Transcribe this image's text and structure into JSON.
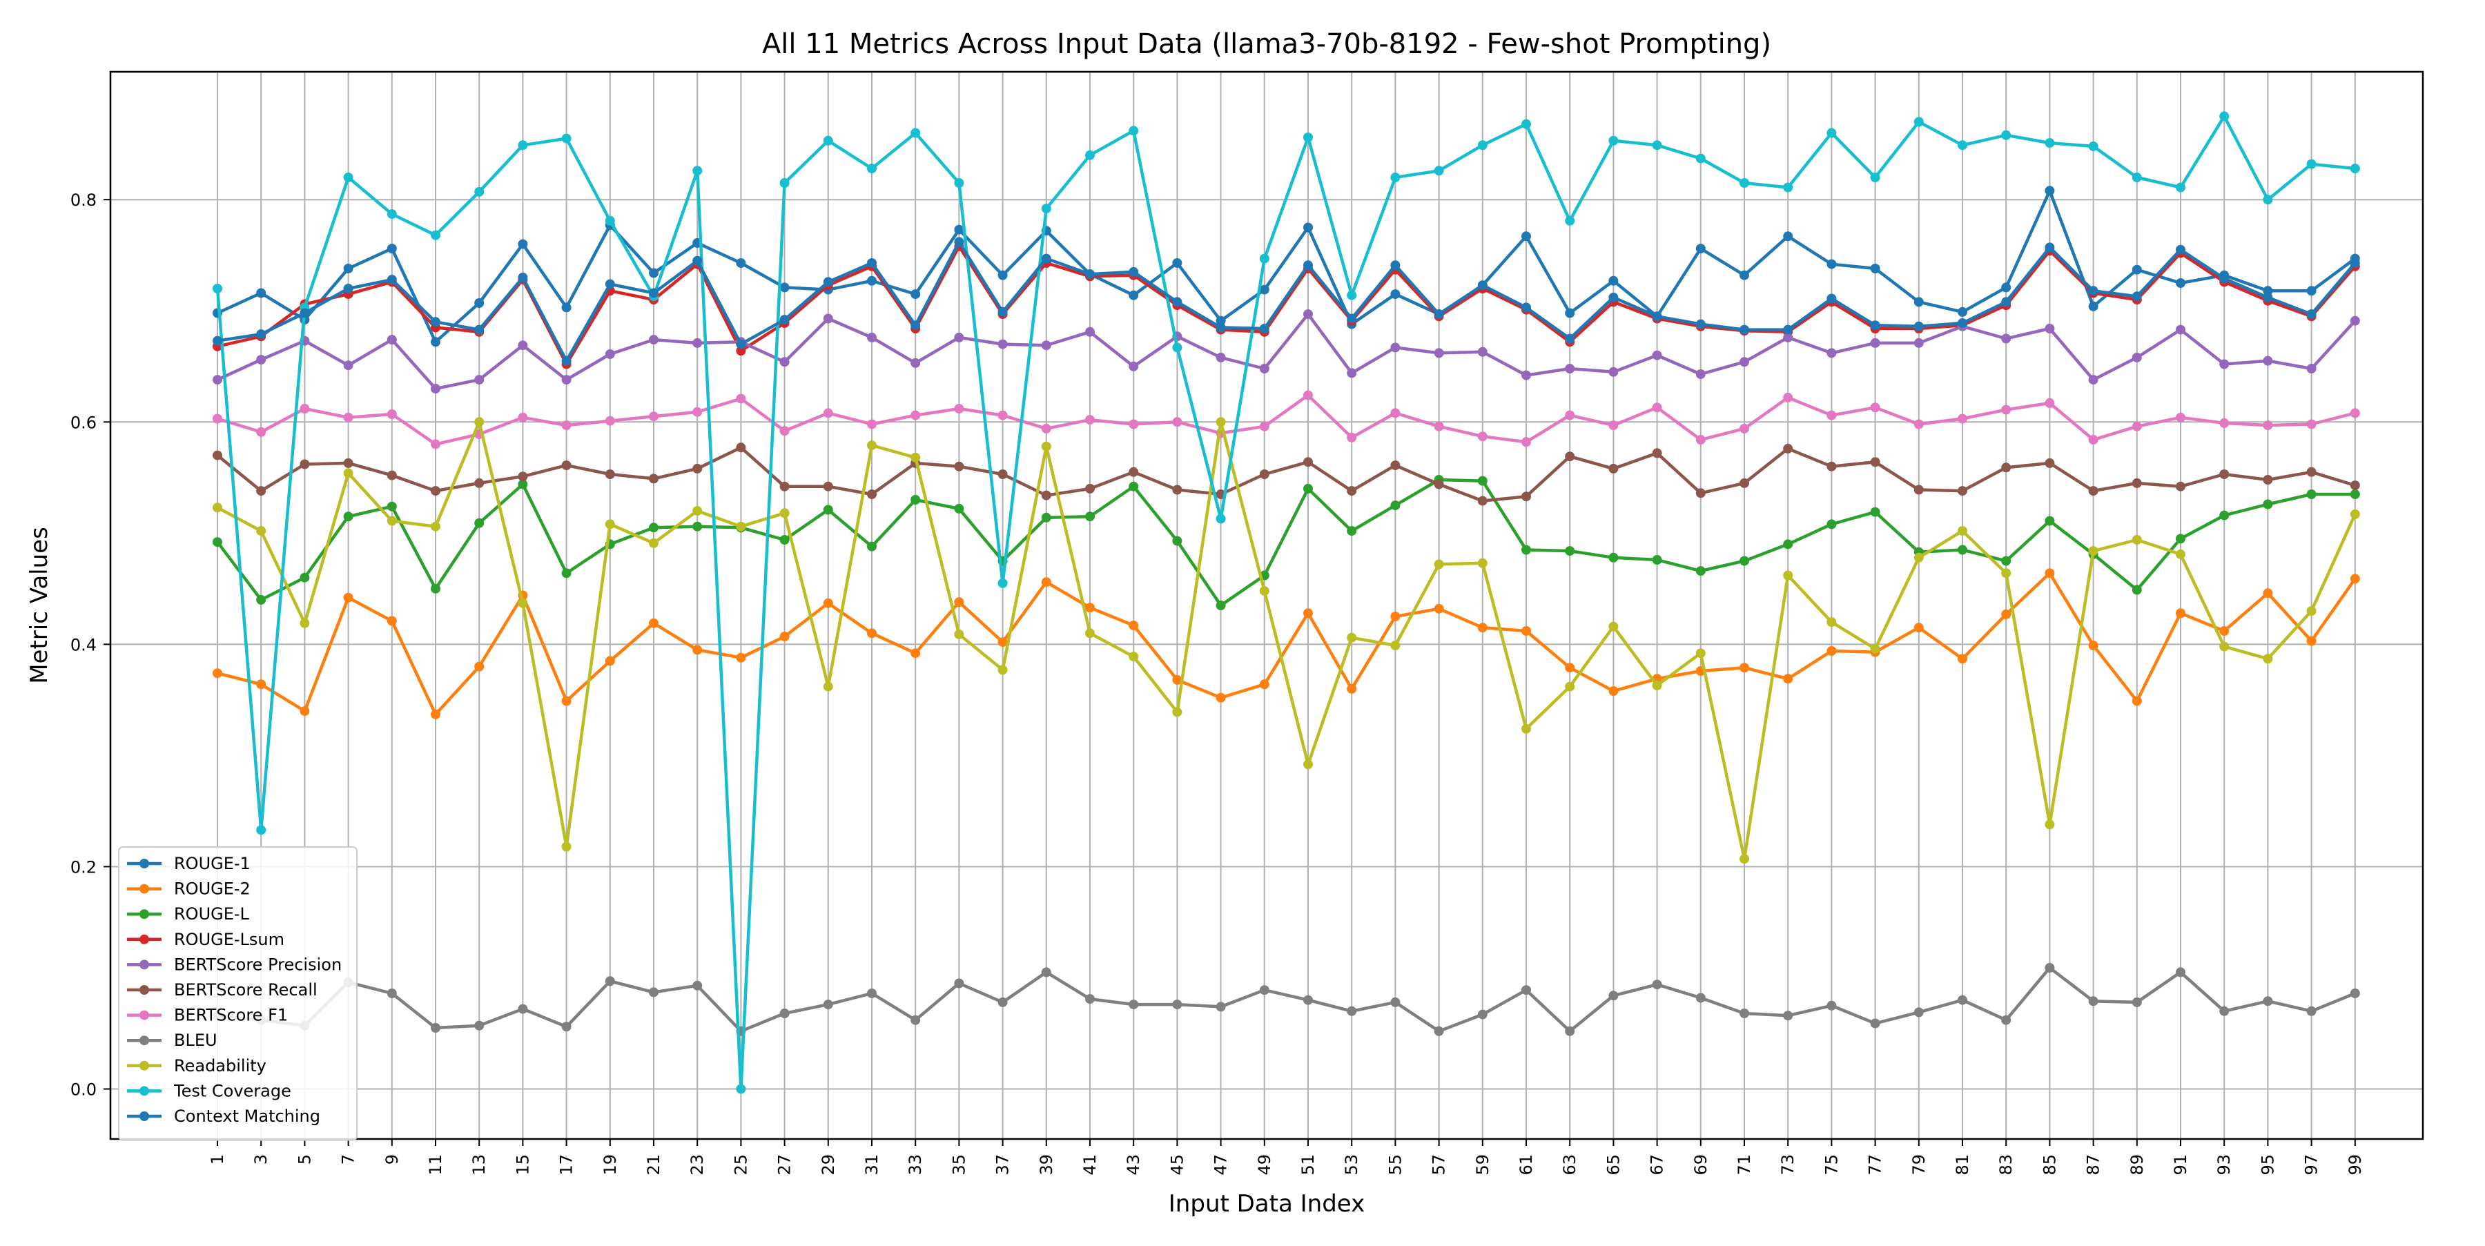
{
  "chart_data": {
    "type": "line",
    "title": "All 11 Metrics Across Input Data (llama3-70b-8192 - Few-shot Prompting)",
    "xlabel": "Input Data Index",
    "ylabel": "Metric Values",
    "ylim": [
      -0.045,
      0.915
    ],
    "yticks": [
      "0.0",
      "0.2",
      "0.4",
      "0.6",
      "0.8"
    ],
    "x": [
      1,
      3,
      5,
      7,
      9,
      11,
      13,
      15,
      17,
      19,
      21,
      23,
      25,
      27,
      29,
      31,
      33,
      35,
      37,
      39,
      41,
      43,
      45,
      47,
      49,
      51,
      53,
      55,
      57,
      59,
      61,
      63,
      65,
      67,
      69,
      71,
      73,
      75,
      77,
      79,
      81,
      83,
      85,
      87,
      89,
      91,
      93,
      95,
      97,
      99
    ],
    "grid": true,
    "legend_position": "lower-left",
    "series": [
      {
        "name": "ROUGE-1",
        "color": "#1f77b4",
        "values": [
          0.698,
          0.716,
          0.692,
          0.738,
          0.756,
          0.672,
          0.707,
          0.76,
          0.703,
          0.777,
          0.734,
          0.761,
          0.743,
          0.721,
          0.719,
          0.727,
          0.715,
          0.773,
          0.732,
          0.772,
          0.733,
          0.714,
          0.743,
          0.691,
          0.719,
          0.775,
          0.688,
          0.715,
          0.697,
          0.723,
          0.767,
          0.698,
          0.727,
          0.695,
          0.756,
          0.732,
          0.767,
          0.742,
          0.738,
          0.708,
          0.699,
          0.721,
          0.808,
          0.704,
          0.737,
          0.725,
          0.732,
          0.718,
          0.718,
          0.747
        ]
      },
      {
        "name": "ROUGE-2",
        "color": "#ff7f0e",
        "values": [
          0.374,
          0.364,
          0.34,
          0.442,
          0.421,
          0.337,
          0.38,
          0.444,
          0.349,
          0.385,
          0.419,
          0.395,
          0.388,
          0.407,
          0.437,
          0.41,
          0.392,
          0.438,
          0.402,
          0.456,
          0.433,
          0.417,
          0.368,
          0.352,
          0.364,
          0.428,
          0.36,
          0.425,
          0.432,
          0.415,
          0.412,
          0.379,
          0.358,
          0.369,
          0.376,
          0.379,
          0.369,
          0.394,
          0.393,
          0.415,
          0.387,
          0.427,
          0.464,
          0.399,
          0.349,
          0.428,
          0.412,
          0.446,
          0.403,
          0.459
        ]
      },
      {
        "name": "ROUGE-L",
        "color": "#2ca02c",
        "values": [
          0.492,
          0.44,
          0.46,
          0.515,
          0.524,
          0.45,
          0.509,
          0.544,
          0.464,
          0.49,
          0.505,
          0.506,
          0.505,
          0.494,
          0.521,
          0.488,
          0.53,
          0.522,
          0.475,
          0.514,
          0.515,
          0.542,
          0.493,
          0.435,
          0.462,
          0.54,
          0.502,
          0.525,
          0.548,
          0.547,
          0.485,
          0.484,
          0.478,
          0.476,
          0.466,
          0.475,
          0.49,
          0.508,
          0.519,
          0.483,
          0.485,
          0.475,
          0.511,
          0.481,
          0.449,
          0.495,
          0.516,
          0.526,
          0.535,
          0.535
        ]
      },
      {
        "name": "ROUGE-Lsum",
        "color": "#d62728",
        "values": [
          0.668,
          0.677,
          0.706,
          0.715,
          0.726,
          0.685,
          0.681,
          0.728,
          0.652,
          0.718,
          0.71,
          0.742,
          0.664,
          0.689,
          0.723,
          0.74,
          0.684,
          0.758,
          0.697,
          0.743,
          0.731,
          0.732,
          0.705,
          0.683,
          0.681,
          0.738,
          0.691,
          0.737,
          0.695,
          0.72,
          0.701,
          0.672,
          0.708,
          0.693,
          0.686,
          0.682,
          0.681,
          0.708,
          0.684,
          0.684,
          0.687,
          0.705,
          0.754,
          0.716,
          0.71,
          0.752,
          0.726,
          0.709,
          0.695,
          0.74
        ]
      },
      {
        "name": "BERTScore Precision",
        "color": "#9467bd",
        "values": [
          0.638,
          0.656,
          0.673,
          0.651,
          0.674,
          0.63,
          0.638,
          0.669,
          0.638,
          0.661,
          0.674,
          0.671,
          0.672,
          0.654,
          0.693,
          0.676,
          0.653,
          0.676,
          0.67,
          0.669,
          0.681,
          0.65,
          0.677,
          0.658,
          0.648,
          0.697,
          0.644,
          0.667,
          0.662,
          0.663,
          0.642,
          0.648,
          0.645,
          0.66,
          0.643,
          0.654,
          0.676,
          0.662,
          0.671,
          0.671,
          0.686,
          0.675,
          0.684,
          0.638,
          0.658,
          0.683,
          0.652,
          0.655,
          0.648,
          0.691
        ]
      },
      {
        "name": "BERTScore Recall",
        "color": "#8c564b",
        "values": [
          0.57,
          0.538,
          0.562,
          0.563,
          0.552,
          0.538,
          0.545,
          0.551,
          0.561,
          0.553,
          0.549,
          0.558,
          0.577,
          0.542,
          0.542,
          0.535,
          0.563,
          0.56,
          0.553,
          0.534,
          0.54,
          0.555,
          0.539,
          0.535,
          0.553,
          0.564,
          0.538,
          0.561,
          0.544,
          0.529,
          0.533,
          0.569,
          0.558,
          0.572,
          0.536,
          0.545,
          0.576,
          0.56,
          0.564,
          0.539,
          0.538,
          0.559,
          0.563,
          0.538,
          0.545,
          0.542,
          0.553,
          0.548,
          0.555,
          0.543
        ]
      },
      {
        "name": "BERTScore F1",
        "color": "#e377c2",
        "values": [
          0.603,
          0.591,
          0.612,
          0.604,
          0.607,
          0.58,
          0.589,
          0.604,
          0.597,
          0.601,
          0.605,
          0.609,
          0.621,
          0.592,
          0.608,
          0.598,
          0.606,
          0.612,
          0.606,
          0.594,
          0.602,
          0.598,
          0.6,
          0.59,
          0.596,
          0.624,
          0.586,
          0.608,
          0.596,
          0.587,
          0.582,
          0.606,
          0.597,
          0.613,
          0.584,
          0.594,
          0.622,
          0.606,
          0.613,
          0.598,
          0.603,
          0.611,
          0.617,
          0.584,
          0.596,
          0.604,
          0.599,
          0.597,
          0.598,
          0.608
        ]
      },
      {
        "name": "BLEU",
        "color": "#7f7f7f",
        "values": [
          0.066,
          0.062,
          0.057,
          0.096,
          0.086,
          0.055,
          0.057,
          0.072,
          0.056,
          0.097,
          0.087,
          0.093,
          0.052,
          0.068,
          0.076,
          0.086,
          0.062,
          0.095,
          0.078,
          0.105,
          0.081,
          0.076,
          0.076,
          0.074,
          0.089,
          0.08,
          0.07,
          0.078,
          0.052,
          0.067,
          0.089,
          0.052,
          0.084,
          0.094,
          0.082,
          0.068,
          0.066,
          0.075,
          0.059,
          0.069,
          0.08,
          0.062,
          0.109,
          0.079,
          0.078,
          0.105,
          0.07,
          0.079,
          0.07,
          0.086
        ]
      },
      {
        "name": "Readability",
        "color": "#bcbd22",
        "values": [
          0.523,
          0.502,
          0.419,
          0.554,
          0.511,
          0.506,
          0.6,
          0.437,
          0.218,
          0.508,
          0.491,
          0.52,
          0.506,
          0.518,
          0.362,
          0.579,
          0.568,
          0.409,
          0.377,
          0.578,
          0.41,
          0.389,
          0.339,
          0.6,
          0.448,
          0.292,
          0.406,
          0.399,
          0.472,
          0.473,
          0.324,
          0.362,
          0.416,
          0.363,
          0.392,
          0.207,
          0.462,
          0.42,
          0.396,
          0.478,
          0.502,
          0.464,
          0.238,
          0.484,
          0.494,
          0.481,
          0.398,
          0.387,
          0.43,
          0.517
        ]
      },
      {
        "name": "Test Coverage",
        "color": "#17becf",
        "values": [
          0.72,
          0.233,
          0.703,
          0.82,
          0.787,
          0.768,
          0.807,
          0.849,
          0.855,
          0.781,
          0.713,
          0.826,
          0.0,
          0.815,
          0.853,
          0.828,
          0.86,
          0.815,
          0.455,
          0.792,
          0.84,
          0.862,
          0.667,
          0.513,
          0.747,
          0.856,
          0.714,
          0.82,
          0.826,
          0.849,
          0.868,
          0.781,
          0.853,
          0.849,
          0.837,
          0.815,
          0.811,
          0.86,
          0.82,
          0.87,
          0.849,
          0.858,
          0.851,
          0.848,
          0.82,
          0.811,
          0.875,
          0.8,
          0.832,
          0.828
        ]
      },
      {
        "name": "Context Matching",
        "color": "#1f77b4",
        "values": [
          0.673,
          0.679,
          0.698,
          0.72,
          0.728,
          0.69,
          0.683,
          0.73,
          0.655,
          0.724,
          0.716,
          0.745,
          0.67,
          0.692,
          0.726,
          0.743,
          0.687,
          0.762,
          0.699,
          0.747,
          0.733,
          0.735,
          0.708,
          0.685,
          0.684,
          0.741,
          0.693,
          0.741,
          0.697,
          0.723,
          0.703,
          0.675,
          0.712,
          0.695,
          0.688,
          0.683,
          0.683,
          0.711,
          0.687,
          0.686,
          0.689,
          0.708,
          0.757,
          0.718,
          0.713,
          0.755,
          0.729,
          0.712,
          0.697,
          0.743
        ]
      }
    ]
  }
}
